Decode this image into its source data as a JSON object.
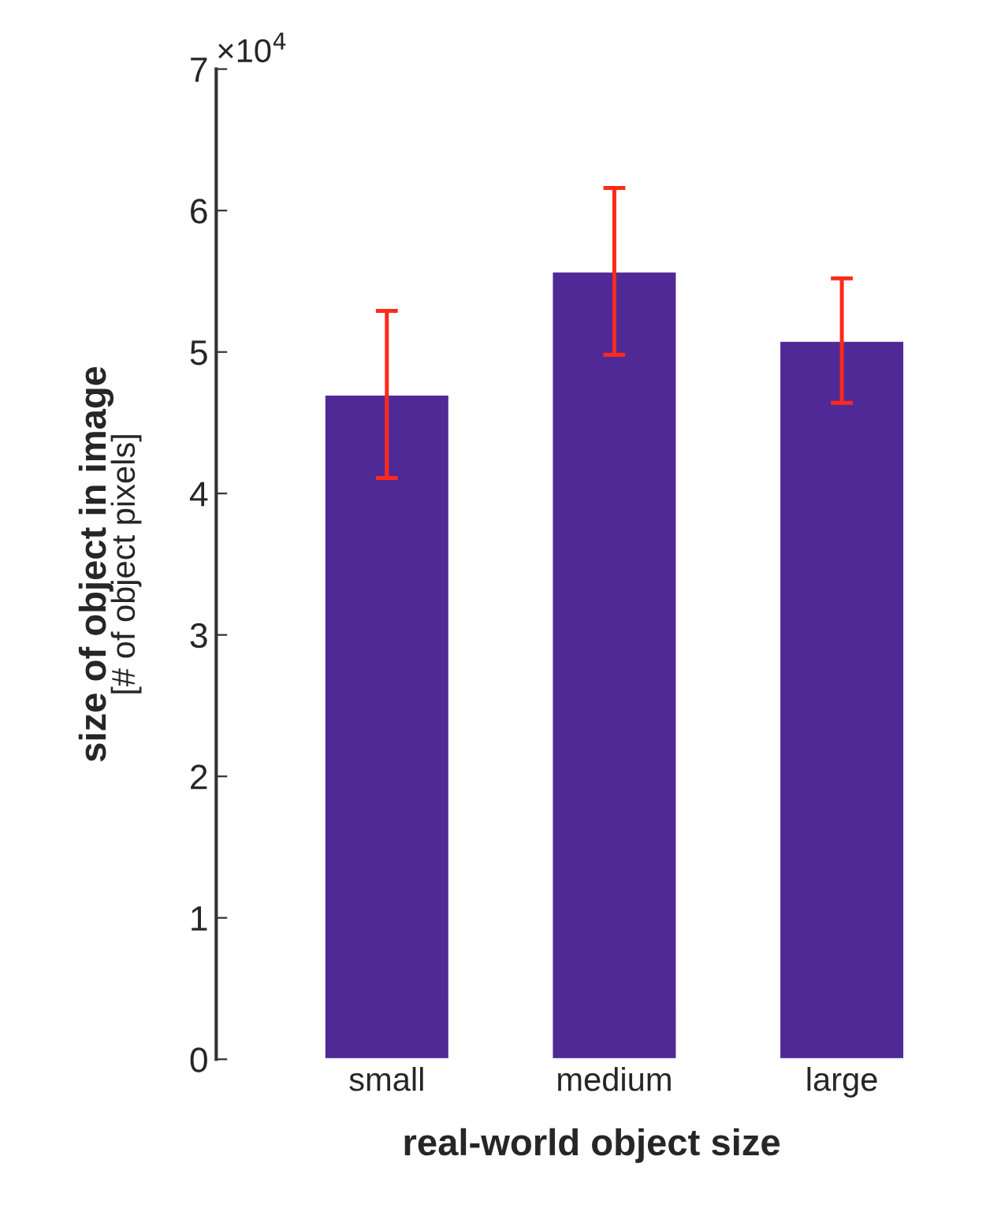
{
  "chart_data": {
    "type": "bar",
    "categories": [
      "small",
      "medium",
      "large"
    ],
    "series": [
      {
        "color": "#4f2a96",
        "values": [
          4.7,
          5.57,
          5.08
        ],
        "errors": [
          0.59,
          0.59,
          0.44
        ]
      }
    ],
    "xlabel": "real-world object size",
    "ylabel": "size of object in image\n[# of object pixels]",
    "ylim": [
      0,
      7
    ],
    "yticks": [
      0,
      1,
      2,
      3,
      4,
      5,
      6,
      7
    ],
    "annotations": [
      "×10$^{4}$"
    ],
    "grid": false,
    "legend": false
  }
}
